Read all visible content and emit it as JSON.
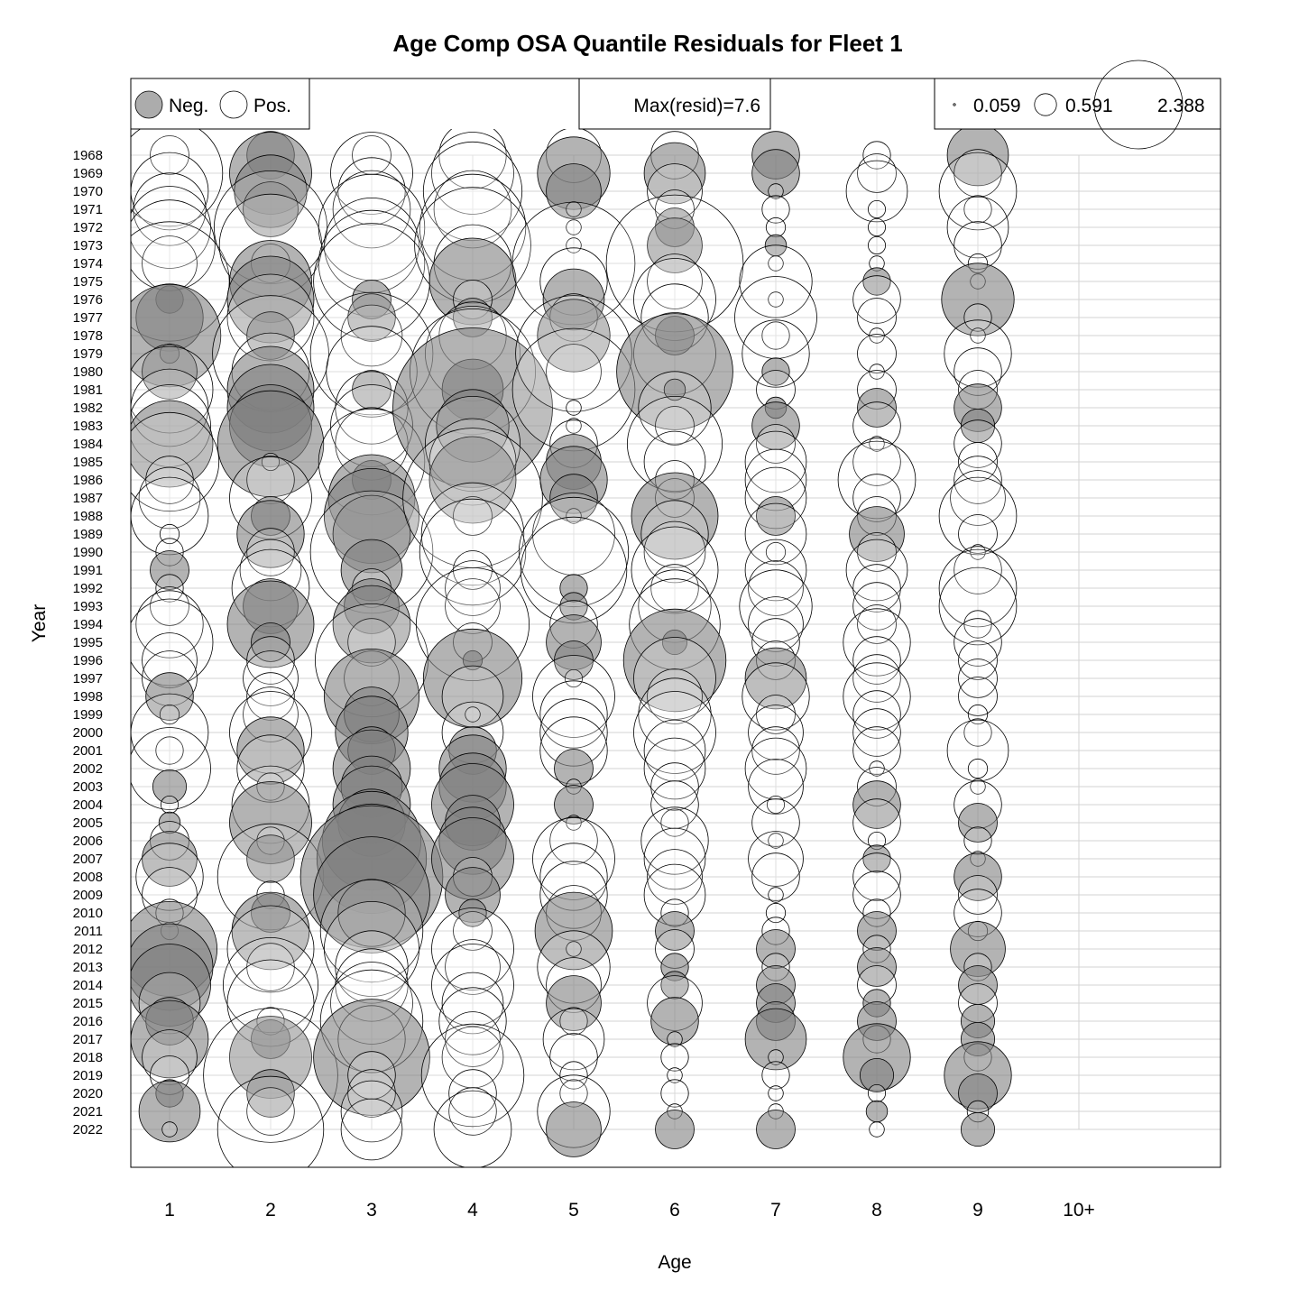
{
  "chart_data": {
    "type": "bubble",
    "title": "Age Comp OSA Quantile Residuals for Fleet 1",
    "xlabel": "Age",
    "ylabel": "Year",
    "x_categories": [
      "1",
      "2",
      "3",
      "4",
      "5",
      "6",
      "7",
      "8",
      "9",
      "10+"
    ],
    "years": [
      1968,
      1969,
      1970,
      1971,
      1972,
      1973,
      1974,
      1975,
      1976,
      1977,
      1978,
      1979,
      1980,
      1981,
      1982,
      1983,
      1984,
      1985,
      1986,
      1987,
      1988,
      1989,
      1990,
      1991,
      1992,
      1993,
      1994,
      1995,
      1996,
      1997,
      1998,
      1999,
      2000,
      2001,
      2002,
      2003,
      2004,
      2005,
      2006,
      2007,
      2008,
      2009,
      2010,
      2011,
      2012,
      2013,
      2014,
      2015,
      2016,
      2017,
      2018,
      2019,
      2020,
      2021,
      2022
    ],
    "legend_sign": {
      "neg_label": "Neg.",
      "pos_label": "Pos."
    },
    "max_resid_label": "Max(resid)=7.6",
    "legend_size_values": [
      "0.059",
      "0.591",
      "2.388"
    ],
    "colors": {
      "negative": "#808080",
      "positive": "#ffffff",
      "outline": "#000000",
      "grid": "#d3d3d3"
    },
    "residuals": {
      "1": [
        0.2,
        1.5,
        0.8,
        0.7,
        0.9,
        1.1,
        0.4,
        1.9,
        -0.1,
        -0.6,
        -1.4,
        -0.05,
        -0.4,
        1.0,
        0.8,
        0.9,
        -1.0,
        1.3,
        0.3,
        0.5,
        0.8,
        0.05,
        0.1,
        -0.2,
        0.1,
        0.2,
        0.6,
        1.0,
        0.4,
        0.4,
        -0.3,
        0.05,
        0.8,
        0.1,
        0.9,
        -0.15,
        0.04,
        -0.06,
        0.2,
        -0.4,
        0.6,
        0.4,
        0.1,
        0.04,
        -1.2,
        -1.0,
        -0.9,
        0.5,
        -0.3,
        -0.8,
        0.4,
        0.2,
        -0.1,
        -0.5,
        0.03
      ],
      "2": [
        -0.3,
        -0.9,
        -0.7,
        -0.4,
        1.7,
        1.4,
        0.2,
        -0.9,
        -1.0,
        1.0,
        -0.3,
        1.8,
        0.8,
        -1.0,
        -1.0,
        -0.9,
        -1.5,
        0.04,
        0.3,
        0.9,
        -0.2,
        -0.6,
        0.3,
        0.5,
        0.8,
        -0.4,
        -1.0,
        -0.2,
        0.3,
        0.4,
        0.3,
        0.4,
        0.9,
        -0.6,
        0.6,
        0.1,
        0.8,
        -0.9,
        0.1,
        -0.3,
        1.5,
        0.1,
        -0.2,
        -0.8,
        1.0,
        0.3,
        1.2,
        1.0,
        0.1,
        -0.2,
        -0.9,
        2.4,
        -0.3,
        0.3,
        1.5
      ],
      "3": [
        0.2,
        0.9,
        0.6,
        0.8,
        1.5,
        1.2,
        1.5,
        1.8,
        -0.2,
        -0.3,
        0.5,
        2.0,
        1.1,
        -0.2,
        0.7,
        0.9,
        0.7,
        1.5,
        -0.2,
        -1.0,
        -1.2,
        -0.8,
        2.0,
        -0.5,
        0.2,
        -0.4,
        -0.8,
        0.3,
        1.7,
        0.4,
        -1.2,
        -0.4,
        -0.7,
        -0.3,
        -0.8,
        -0.5,
        -0.8,
        -0.6,
        -1.3,
        -1.6,
        -2.7,
        -1.8,
        -0.6,
        1.4,
        1.2,
        0.7,
        0.7,
        0.9,
        1.4,
        0.6,
        -1.8,
        0.3,
        0.3,
        0.5,
        0.5
      ],
      "4": [
        0.6,
        0.9,
        1.3,
        0.8,
        1.5,
        1.8,
        0.8,
        -1.0,
        0.2,
        -0.2,
        0.6,
        1.2,
        2.1,
        -0.5,
        -3.4,
        -0.7,
        1.2,
        1.0,
        -1.0,
        2.6,
        0.2,
        1.4,
        1.5,
        0.2,
        0.4,
        0.4,
        1.7,
        0.2,
        -0.05,
        -1.3,
        0.5,
        0.03,
        0.5,
        -0.3,
        -0.6,
        -0.6,
        -0.9,
        -0.4,
        -0.6,
        -0.9,
        0.2,
        -0.4,
        -0.1,
        0.2,
        0.9,
        0.4,
        0.9,
        0.5,
        0.6,
        0.4,
        0.5,
        1.4,
        0.3,
        0.3,
        0.8
      ],
      "5": [
        0.4,
        -0.7,
        -0.4,
        0.03,
        0.03,
        0.03,
        2.0,
        0.6,
        -0.5,
        0.3,
        -0.7,
        1.8,
        0.4,
        2.0,
        0.03,
        0.03,
        0.3,
        -0.4,
        -0.6,
        -0.3,
        0.03,
        0.9,
        1.6,
        1.5,
        -0.1,
        -0.1,
        0.3,
        -0.4,
        -0.2,
        0.04,
        0.9,
        0.6,
        0.6,
        0.6,
        -0.2,
        0.03,
        -0.2,
        0.03,
        0.3,
        0.9,
        0.6,
        0.6,
        0.4,
        -0.8,
        0.03,
        0.7,
        0.4,
        -0.4,
        0.1,
        0.5,
        0.3,
        0.1,
        0.1,
        0.7,
        -0.4
      ],
      "6": [
        0.3,
        -0.5,
        0.4,
        0.2,
        -0.2,
        -0.4,
        2.5,
        0.4,
        0.9,
        0.6,
        -0.2,
        0.9,
        -1.8,
        -0.06,
        0.7,
        0.2,
        1.2,
        0.5,
        0.2,
        0.2,
        -1.0,
        0.6,
        0.5,
        1.0,
        0.3,
        0.7,
        1.1,
        -0.08,
        -1.4,
        0.9,
        0.4,
        0.7,
        0.9,
        0.5,
        0.5,
        0.3,
        0.3,
        0.1,
        0.6,
        0.5,
        0.4,
        0.5,
        0.1,
        -0.2,
        0.2,
        -0.1,
        -0.1,
        0.4,
        -0.3,
        0.03,
        0.1,
        0.03,
        0.1,
        0.03,
        -0.2
      ],
      "7": [
        -0.3,
        -0.3,
        0.03,
        0.1,
        0.05,
        -0.06,
        0.03,
        0.7,
        0.03,
        0.9,
        0.1,
        0.6,
        -0.1,
        0.2,
        -0.06,
        -0.3,
        0.2,
        0.5,
        0.5,
        0.5,
        -0.2,
        0.5,
        0.05,
        0.5,
        0.4,
        0.7,
        0.4,
        0.3,
        0.2,
        -0.5,
        0.6,
        0.2,
        0.4,
        0.3,
        0.5,
        0.4,
        0.04,
        0.3,
        0.03,
        0.4,
        0.3,
        0.03,
        0.05,
        0.1,
        -0.2,
        0.1,
        -0.2,
        -0.2,
        -0.2,
        -0.5,
        0.03,
        0.1,
        0.03,
        0.03,
        -0.2
      ],
      "8": [
        0.1,
        0.2,
        0.5,
        0.04,
        0.04,
        0.04,
        0.03,
        -0.1,
        0.3,
        0.2,
        0.03,
        0.2,
        0.03,
        0.2,
        -0.2,
        0.3,
        0.03,
        0.3,
        0.8,
        0.3,
        0.2,
        -0.4,
        0.2,
        0.5,
        0.3,
        0.3,
        0.2,
        0.6,
        0.3,
        0.3,
        0.6,
        0.3,
        0.3,
        0.3,
        0.03,
        0.2,
        -0.3,
        0.3,
        0.04,
        -0.1,
        0.3,
        0.3,
        0.1,
        -0.2,
        0.1,
        -0.2,
        0.2,
        -0.1,
        -0.2,
        0.1,
        -0.6,
        -0.15,
        0.04,
        -0.06,
        0.03
      ],
      "9": [
        -0.5,
        0.3,
        0.8,
        0.1,
        0.5,
        0.3,
        0.05,
        0.03,
        -0.7,
        0.1,
        0.03,
        0.6,
        0.3,
        0.2,
        -0.3,
        -0.15,
        0.3,
        0.2,
        0.3,
        0.4,
        0.8,
        0.2,
        0.03,
        0.3,
        0.8,
        0.8,
        0.1,
        0.3,
        0.2,
        0.2,
        0.2,
        0.05,
        0.1,
        0.5,
        0.05,
        0.03,
        0.3,
        -0.2,
        0.1,
        0.03,
        -0.3,
        0.2,
        0.3,
        0.05,
        -0.4,
        0.1,
        -0.2,
        0.2,
        -0.15,
        -0.15,
        0.1,
        -0.6,
        -0.2,
        0.06,
        -0.15
      ],
      "10+": []
    }
  }
}
